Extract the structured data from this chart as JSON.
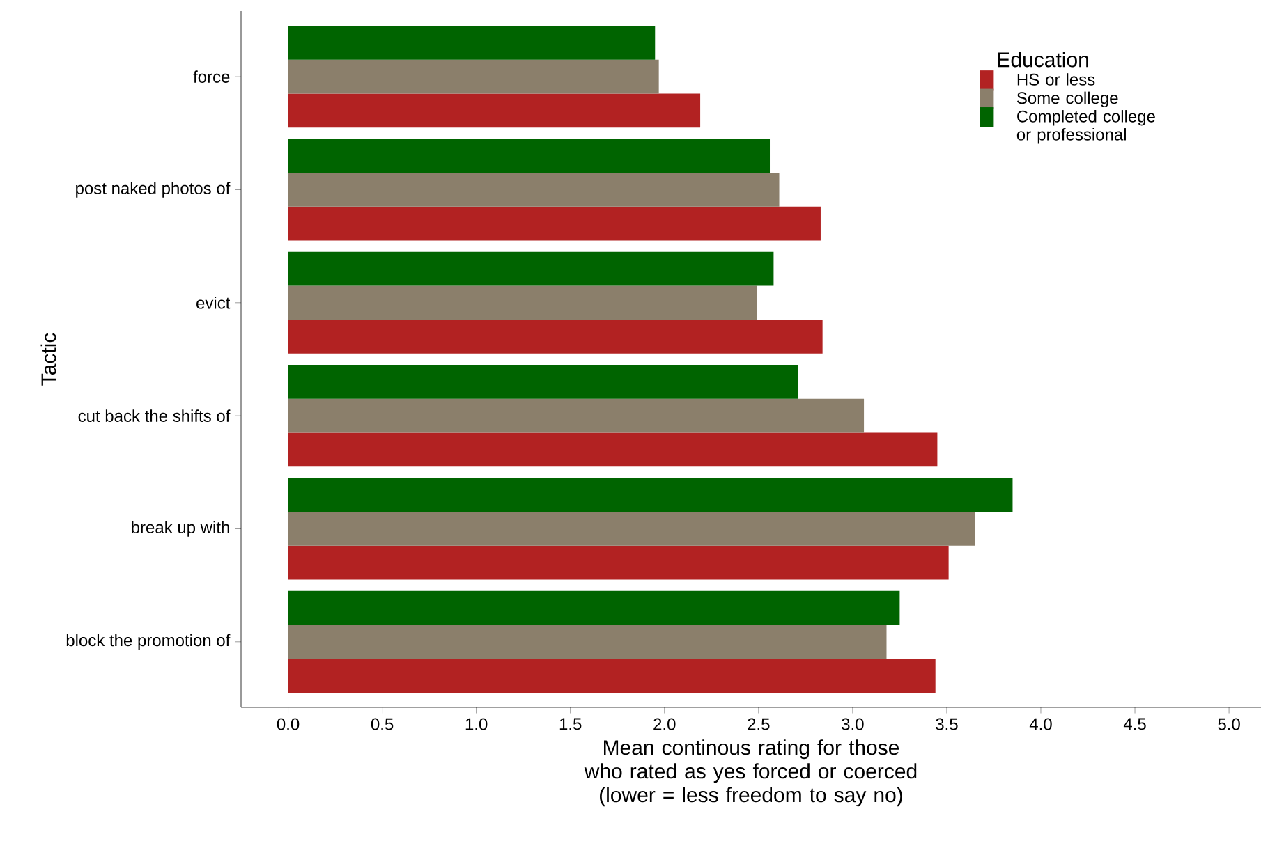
{
  "chart_data": {
    "type": "bar",
    "orientation": "horizontal",
    "xlabel": "Mean continous rating for those who rated as yes forced or coerced (lower = less freedom to say no)",
    "ylabel": "Tactic",
    "legend_title": "Education",
    "legend": "top right",
    "grid": false,
    "categories": [
      "force",
      "post naked photos of",
      "evict",
      "cut back the shifts of",
      "break up with",
      "block the promotion of"
    ],
    "xlim": [
      -0.25,
      5.17
    ],
    "xticks": [
      {
        "value": 0,
        "label": "0.0"
      },
      {
        "value": 0.5,
        "label": "0.5"
      },
      {
        "value": 1,
        "label": "1.0"
      },
      {
        "value": 1.5,
        "label": "1.5"
      },
      {
        "value": 2,
        "label": "2.0"
      },
      {
        "value": 2.5,
        "label": "2.5"
      },
      {
        "value": 3,
        "label": "3.0"
      },
      {
        "value": 3.5,
        "label": "3.5"
      },
      {
        "value": 4,
        "label": "4.0"
      },
      {
        "value": 4.5,
        "label": "4.5"
      },
      {
        "value": 5,
        "label": "5.0"
      }
    ],
    "series": [
      {
        "name": "HS or less",
        "color": "#b22222",
        "values": [
          2.19,
          2.83,
          2.84,
          3.45,
          3.51,
          3.44
        ]
      },
      {
        "name": "Some college",
        "color": "#8b7f6b",
        "values": [
          1.97,
          2.61,
          2.49,
          3.06,
          3.65,
          3.18
        ]
      },
      {
        "name": "Completed college or professional",
        "color": "#006400",
        "values": [
          1.95,
          2.56,
          2.58,
          2.71,
          3.85,
          3.25
        ]
      }
    ]
  }
}
